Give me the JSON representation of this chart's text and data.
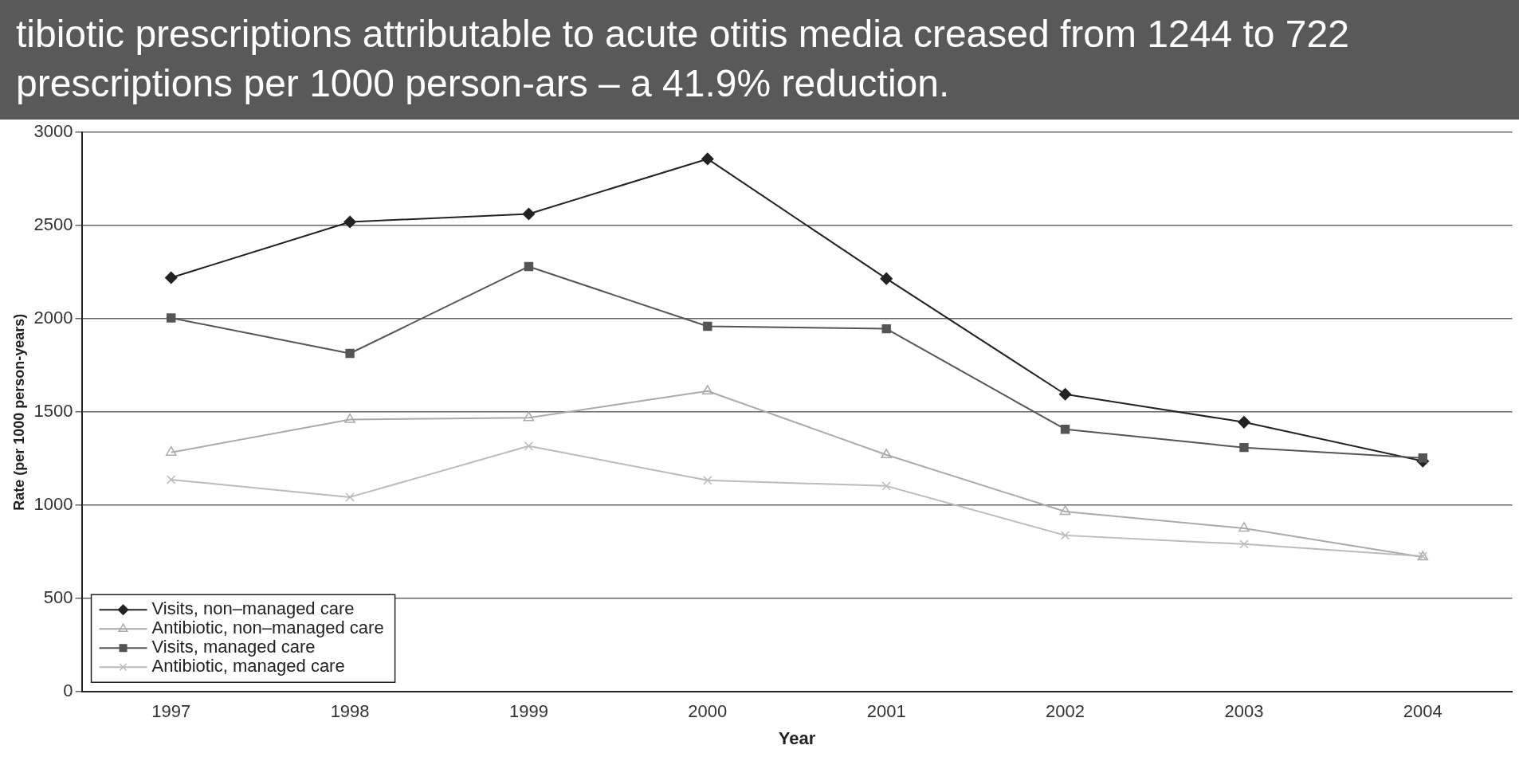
{
  "chart_data": {
    "type": "line",
    "categories": [
      "1997",
      "1998",
      "1999",
      "2000",
      "2001",
      "2002",
      "2003",
      "2004"
    ],
    "series": [
      {
        "name": "Visits, non–managed care",
        "color": "#222222",
        "marker": "diamond",
        "values": [
          2221,
          2520,
          2563,
          2858,
          2216,
          1596,
          1446,
          1237
        ]
      },
      {
        "name": "Antibiotic, non–managed care",
        "color": "#aaaaaa",
        "marker": "triangle",
        "values": [
          1284,
          1460,
          1470,
          1613,
          1271,
          967,
          877,
          723
        ]
      },
      {
        "name": "Visits, managed care",
        "color": "#555555",
        "marker": "square",
        "values": [
          2005,
          1815,
          2281,
          1960,
          1947,
          1408,
          1310,
          1254
        ]
      },
      {
        "name": "Antibiotic, managed care",
        "color": "#bbbbbb",
        "marker": "cross",
        "values": [
          1138,
          1044,
          1318,
          1134,
          1104,
          839,
          792,
          727
        ]
      }
    ],
    "xlabel": "Year",
    "ylabel": "Rate (per 1000 person-years)",
    "ylim": [
      0,
      3000
    ],
    "yticks": [
      0,
      500,
      1000,
      1500,
      2000,
      2500,
      3000
    ],
    "grid": "y",
    "legend": "bottom left",
    "line_style": "solid",
    "annotations": [
      "tibiotic prescriptions attributable to acute otitis media creased from 1244 to 722 prescriptions per 1000 person-ars – a 41.9% reduction."
    ]
  }
}
